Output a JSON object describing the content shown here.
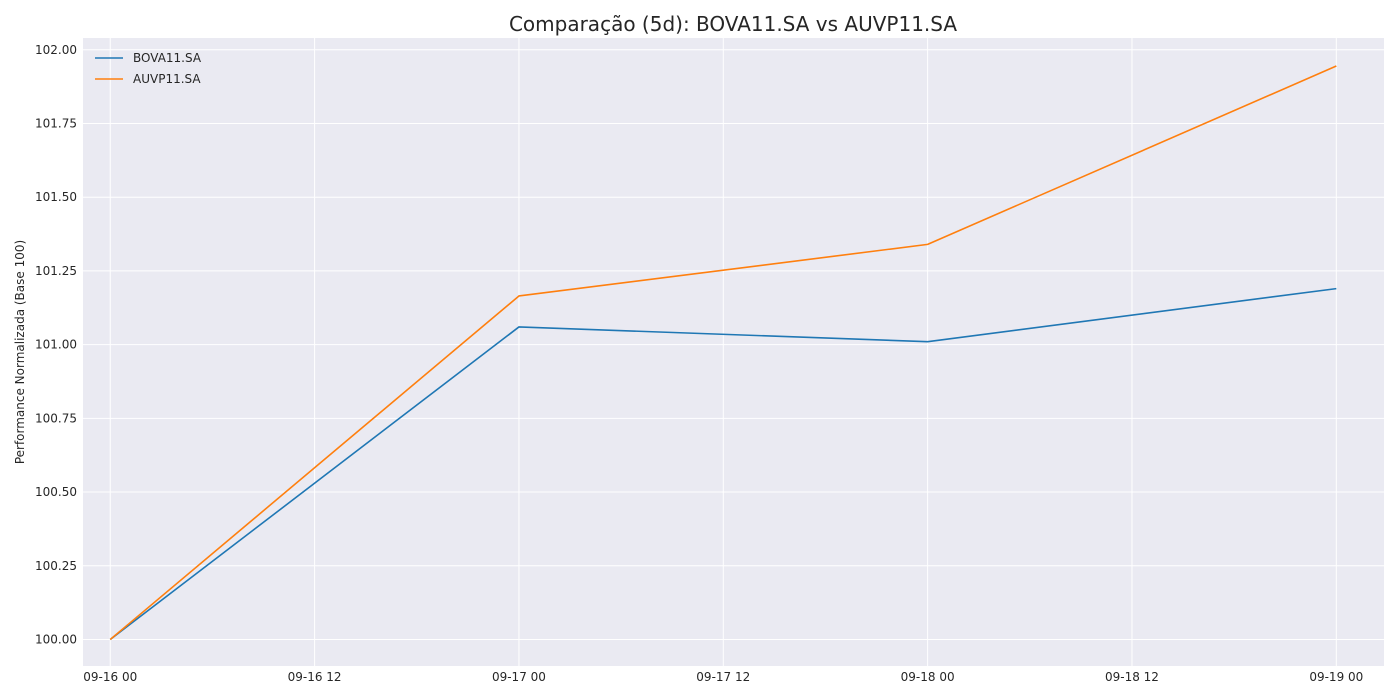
{
  "chart_data": {
    "type": "line",
    "title": "Comparação (5d): BOVA11.SA vs AUVP11.SA",
    "xlabel": "",
    "ylabel": "Performance Normalizada (Base 100)",
    "x": [
      "2023-09-16 00:00",
      "2023-09-17 00:00",
      "2023-09-18 00:00",
      "2023-09-19 00:00"
    ],
    "x_tick_labels": [
      "09-16 00",
      "09-16 12",
      "09-17 00",
      "09-17 12",
      "09-18 00",
      "09-18 12",
      "09-19 00"
    ],
    "y_tick_labels": [
      "100.00",
      "100.25",
      "100.50",
      "100.75",
      "101.00",
      "101.25",
      "101.50",
      "101.75",
      "102.00"
    ],
    "ylim": [
      99.91,
      102.04
    ],
    "grid": true,
    "legend_position": "top-left",
    "series": [
      {
        "name": "BOVA11.SA",
        "color": "#1f77b4",
        "values": [
          100.0,
          101.06,
          101.01,
          101.19
        ]
      },
      {
        "name": "AUVP11.SA",
        "color": "#ff7f0e",
        "values": [
          100.0,
          101.165,
          101.34,
          101.945
        ]
      }
    ],
    "plot_background": "#eaeaf2",
    "grid_color": "#ffffff"
  }
}
